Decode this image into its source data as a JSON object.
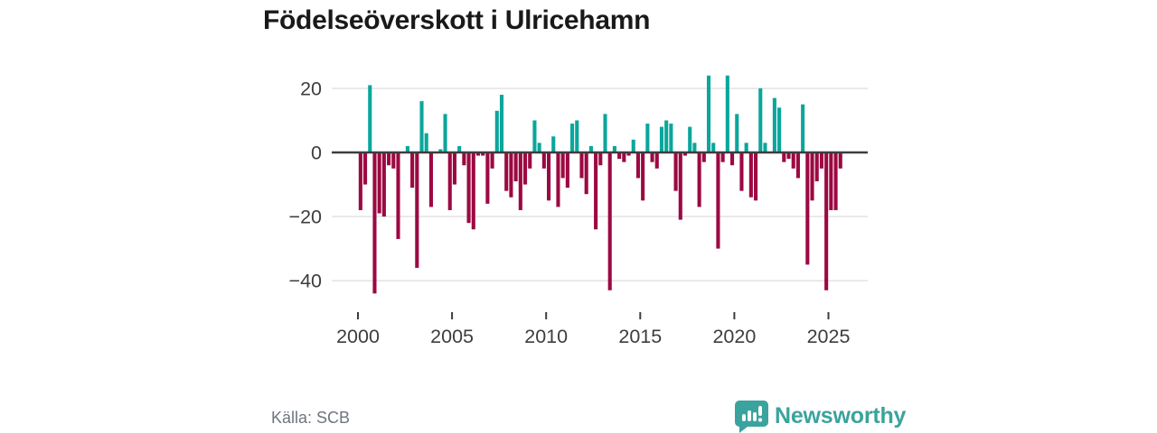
{
  "title": "Födelseöverskott i Ulricehamn",
  "source": {
    "text": "Källa: SCB"
  },
  "logo": {
    "text": "Newsworthy",
    "icon": "speech-bubble-bar-chart-icon",
    "color": "#3ba39d"
  },
  "chart_data": {
    "type": "bar",
    "title": "Födelseöverskott i Ulricehamn",
    "xlabel": "",
    "ylabel": "",
    "frequency": "quarterly",
    "start_period": "2000-Q1",
    "end_period": "2025-Q3",
    "x_ticks": [
      2000,
      2005,
      2010,
      2015,
      2020,
      2025
    ],
    "y_ticks": [
      20,
      0,
      -20,
      -40
    ],
    "y_tick_labels": [
      "20",
      "0",
      "−20",
      "−40"
    ],
    "ylim": [
      -48,
      27
    ],
    "grid": "horizontal",
    "legend": "none",
    "colors": {
      "positive": "#0ba69c",
      "negative": "#9c0942",
      "zero_line": "#3d3d3d",
      "grid_line": "#e3e3e3",
      "axis_text": "#3d3d3d"
    },
    "values": [
      -18,
      -10,
      21,
      -44,
      -19,
      -20,
      -4,
      -5,
      -27,
      0,
      2,
      -11,
      -36,
      16,
      6,
      -17,
      0,
      1,
      12,
      -18,
      -10,
      2,
      -4,
      -22,
      -24,
      -1,
      -1,
      -16,
      -5,
      13,
      18,
      -12,
      -14,
      -9,
      -18,
      -10,
      -5,
      10,
      3,
      -5,
      -15,
      5,
      -17,
      -8,
      -11,
      9,
      10,
      -8,
      -13,
      2,
      -24,
      -4,
      12,
      -43,
      2,
      -2,
      -3,
      -1,
      4,
      -8,
      -15,
      9,
      -3,
      -5,
      8,
      10,
      9,
      -12,
      -21,
      -1,
      8,
      3,
      -17,
      -3,
      24,
      3,
      -30,
      -3,
      24,
      -4,
      12,
      -12,
      3,
      -14,
      -15,
      20,
      3,
      0,
      17,
      14,
      -3,
      -2,
      -5,
      -8,
      15,
      -35,
      -15,
      -9,
      -5,
      -43,
      -18,
      -18,
      -5
    ]
  }
}
